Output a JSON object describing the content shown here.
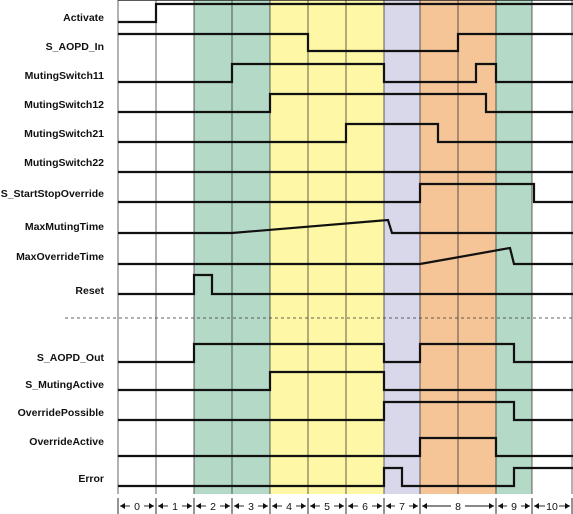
{
  "diagram": {
    "signals_top": [
      {
        "name": "Activate"
      },
      {
        "name": "S_AOPD_In"
      },
      {
        "name": "MutingSwitch11"
      },
      {
        "name": "MutingSwitch12"
      },
      {
        "name": "MutingSwitch21"
      },
      {
        "name": "MutingSwitch22"
      },
      {
        "name": "S_StartStopOverride"
      },
      {
        "name": "MaxMutingTime"
      },
      {
        "name": "MaxOverrideTime"
      },
      {
        "name": "Reset"
      }
    ],
    "signals_bottom": [
      {
        "name": "S_AOPD_Out"
      },
      {
        "name": "S_MutingActive"
      },
      {
        "name": "OverridePossible"
      },
      {
        "name": "OverrideActive"
      },
      {
        "name": "Error"
      }
    ],
    "phases": [
      "0",
      "1",
      "2",
      "3",
      "4",
      "5",
      "6",
      "7",
      "8",
      "9",
      "10"
    ],
    "phase_colors": {
      "green": "#b4d9c7",
      "yellow": "#fdf7a6",
      "lavender": "#d9d7ea",
      "orange": "#f5c497"
    }
  }
}
